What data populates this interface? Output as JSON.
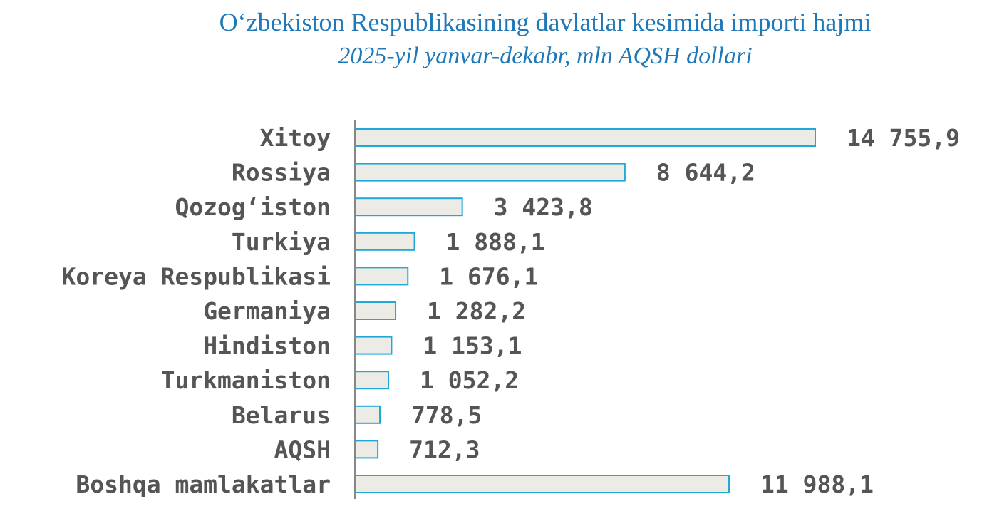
{
  "chart_data": {
    "type": "bar",
    "orientation": "horizontal",
    "title": "O‘zbekiston Respublikasining davlatlar kesimida importi hajmi",
    "subtitle": "2025-yil yanvar-dekabr, mln AQSH dollari",
    "categories": [
      "Xitoy",
      "Rossiya",
      "Qozog‘iston",
      "Turkiya",
      "Koreya Respublikasi",
      "Germaniya",
      "Hindiston",
      "Turkmaniston",
      "Belarus",
      "AQSH",
      "Boshqa mamlakatlar"
    ],
    "values": [
      14755.9,
      8644.2,
      3423.8,
      1888.1,
      1676.1,
      1282.2,
      1153.1,
      1052.2,
      778.5,
      712.3,
      11988.1
    ],
    "value_labels": [
      "14 755,9",
      "8 644,2",
      "3 423,8",
      "1 888,1",
      "1 676,1",
      "1 282,2",
      "1 153,1",
      "1 052,2",
      "778,5",
      "712,3",
      "11 988,1"
    ],
    "xlim": [
      0,
      14755.9
    ],
    "grid": false,
    "legend": "none",
    "colors": {
      "bar_fill": "#ecebe5",
      "bar_stroke": "#1fa8d8",
      "axis": "#888888",
      "title": "#1f78b8",
      "text": "#555555"
    }
  }
}
